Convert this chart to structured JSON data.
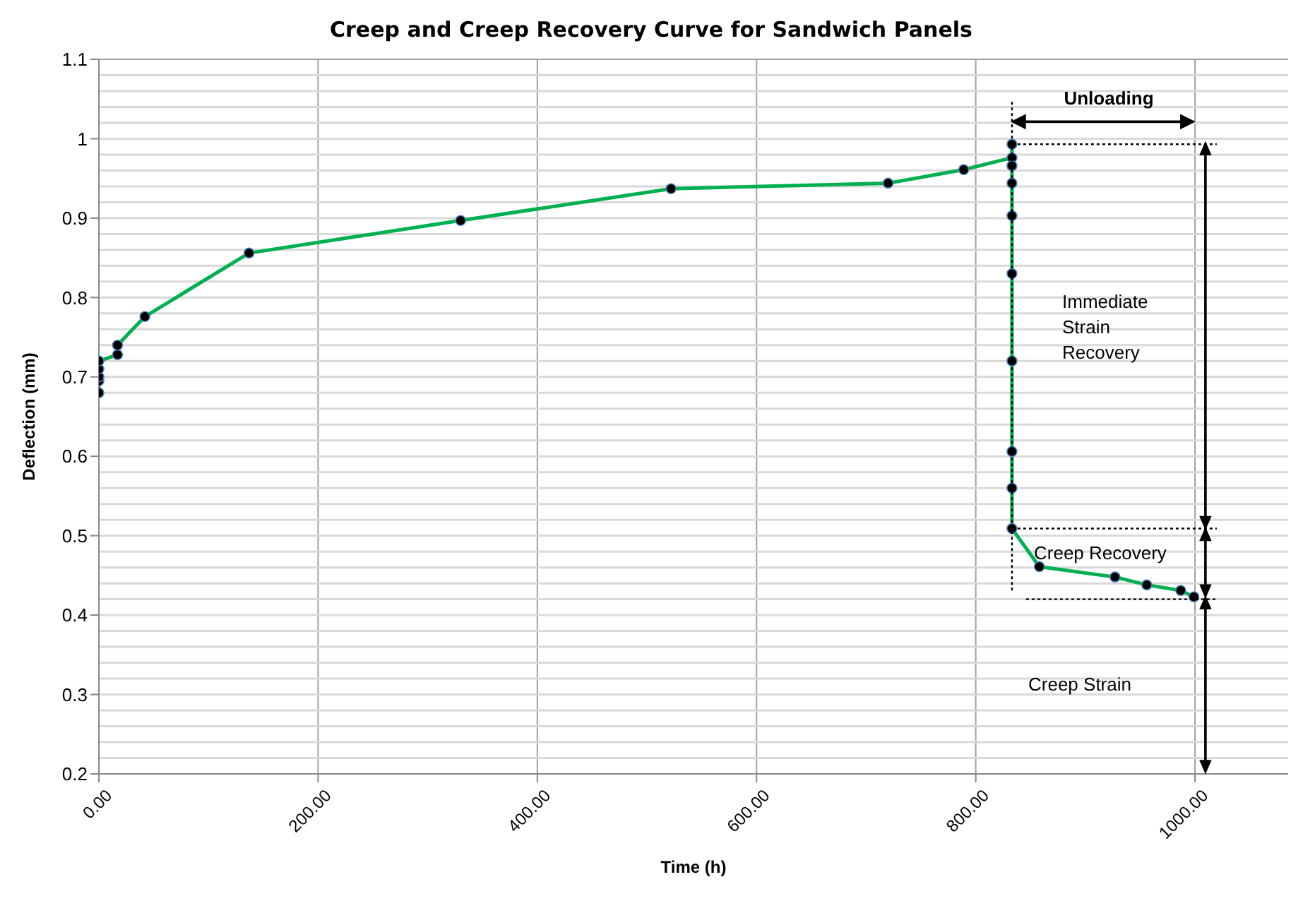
{
  "chart_data": {
    "type": "line",
    "title": "Creep and Creep Recovery Curve for Sandwich Panels",
    "xlabel": "Time (h)",
    "ylabel": "Deflection (mm)",
    "x": [
      0,
      0,
      0,
      0,
      0,
      17,
      17,
      42,
      137,
      330,
      522,
      720,
      789,
      833,
      833,
      833,
      833,
      833,
      833,
      833,
      833,
      833,
      833,
      858,
      927,
      956,
      987,
      999
    ],
    "series": [
      {
        "color": "#00b050",
        "values": [
          0.68,
          0.695,
          0.7,
          0.71,
          0.72,
          0.728,
          0.74,
          0.776,
          0.856,
          0.897,
          0.937,
          0.944,
          0.961,
          0.976,
          0.993,
          0.966,
          0.944,
          0.903,
          0.83,
          0.72,
          0.606,
          0.56,
          0.509,
          0.461,
          0.448,
          0.438,
          0.431,
          0.423
        ]
      }
    ],
    "xlim": [
      0,
      1085
    ],
    "xticks": [
      {
        "value": 0,
        "label": "0.00"
      },
      {
        "value": 200,
        "label": "200.00"
      },
      {
        "value": 400,
        "label": "400.00"
      },
      {
        "value": 600,
        "label": "600.00"
      },
      {
        "value": 800,
        "label": "800.00"
      },
      {
        "value": 1000,
        "label": "1000.00"
      }
    ],
    "ylim": [
      0.2,
      1.1
    ],
    "yticks": [
      0.2,
      0.3,
      0.4,
      0.5,
      0.6,
      0.7,
      0.8,
      0.9,
      1,
      1.1
    ],
    "grid": true,
    "marker": "circle",
    "line_style": "solid",
    "ref_lines": [
      {
        "axis": "x",
        "value": 833,
        "label": null,
        "color": "#000000",
        "line_style": "dotted"
      },
      {
        "axis": "y",
        "value": 0.993,
        "label": null,
        "color": "#000000",
        "line_style": "dotted"
      },
      {
        "axis": "y",
        "value": 0.509,
        "label": null,
        "color": "#000000",
        "line_style": "dotted"
      },
      {
        "axis": "y",
        "value": 0.42,
        "label": null,
        "color": "#000000",
        "line_style": "dotted"
      }
    ],
    "annotations": [
      "Unloading",
      "Immediate\nStrain\nRecovery",
      "Creep Recovery",
      "Creep Strain"
    ]
  }
}
